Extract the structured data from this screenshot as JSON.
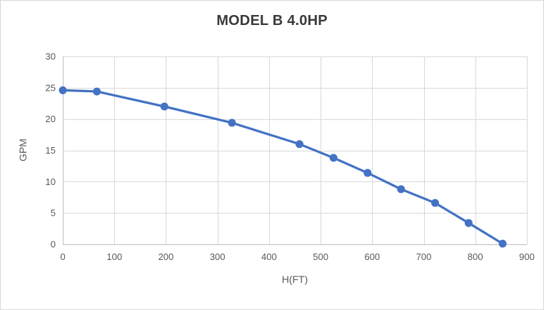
{
  "chart_data": {
    "type": "line",
    "title": "MODEL B 4.0HP",
    "xlabel": "H(FT)",
    "ylabel": "GPM",
    "xlim": [
      0,
      900
    ],
    "ylim": [
      0,
      30
    ],
    "x_ticks": [
      0,
      100,
      200,
      300,
      400,
      500,
      600,
      700,
      800,
      900
    ],
    "y_ticks": [
      0,
      5,
      10,
      15,
      20,
      25,
      30
    ],
    "grid": true,
    "legend": "none",
    "series": [
      {
        "name": "MODEL B 4.0HP",
        "x": [
          0,
          66,
          197,
          328,
          459,
          525,
          591,
          656,
          722,
          787,
          853
        ],
        "y": [
          24.6,
          24.4,
          22.0,
          19.4,
          16.0,
          13.8,
          11.4,
          8.8,
          6.6,
          3.4,
          0.1
        ],
        "marker": "circle"
      }
    ],
    "colors": {
      "series": "#4472C4",
      "gridline": "#d9d9d9",
      "axis_line": "#bfbfbf",
      "tick_text": "#595959",
      "title_text": "#3a3a3a",
      "chart_border": "#d8d8d8",
      "background": "#ffffff"
    }
  }
}
